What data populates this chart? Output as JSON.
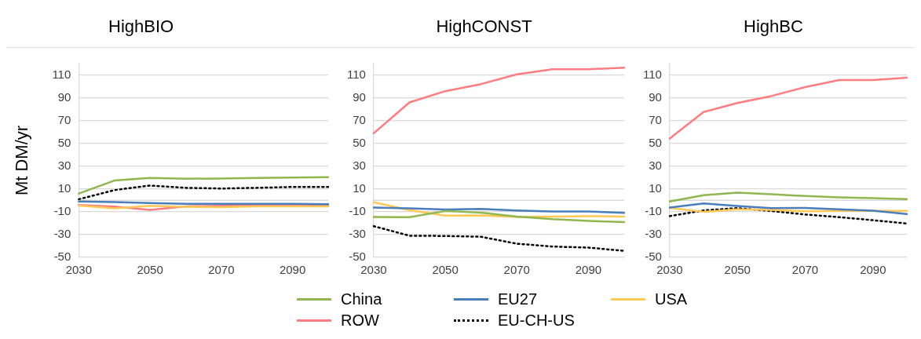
{
  "chart_data": [
    {
      "type": "line",
      "title": "HighBIO",
      "ylabel": "Mt DM/yr",
      "categories": [
        "2030",
        null,
        "2050",
        null,
        "2070",
        null,
        "2090",
        null
      ],
      "ylim": [
        -50,
        120
      ],
      "yticks": [
        -50,
        -30,
        -10,
        10,
        30,
        50,
        70,
        90,
        110
      ],
      "grid": "y",
      "legend": "bottom",
      "marker": "none",
      "ref_lines": [
        {
          "axis": "y",
          "value": 0,
          "color": "#d9d9d9"
        }
      ],
      "series": [
        {
          "name": "China",
          "color": "#8fb64f",
          "values": [
            6,
            17.4,
            19.7,
            19,
            19.2,
            19.7,
            20,
            20.3
          ]
        },
        {
          "name": "EU27",
          "color": "#4a7ebb",
          "values": [
            -1,
            -1.5,
            -2.3,
            -3,
            -3,
            -3,
            -3,
            -3.4
          ]
        },
        {
          "name": "USA",
          "color": "#ffc857",
          "values": [
            -4.5,
            -7,
            -4.7,
            -5.6,
            -6,
            -5.2,
            -5.2,
            -5.2
          ]
        },
        {
          "name": "ROW",
          "color": "#ff7c80",
          "values": [
            -4,
            -5.5,
            -8.4,
            -5.2,
            -4.7,
            -4,
            -4,
            -4
          ]
        },
        {
          "name": "EU-CH-US",
          "color": "#000000",
          "line_style": "dotted",
          "values": [
            1,
            9,
            13,
            11,
            10.4,
            11,
            11.8,
            11.8
          ]
        }
      ]
    },
    {
      "type": "line",
      "title": "HighCONST",
      "categories": [
        "2030",
        null,
        "2050",
        null,
        "2070",
        null,
        "2090",
        null
      ],
      "ylim": [
        -50,
        120
      ],
      "yticks": [
        -50,
        -30,
        -10,
        10,
        30,
        50,
        70,
        90,
        110
      ],
      "grid": "y",
      "marker": "none",
      "ref_lines": [
        {
          "axis": "y",
          "value": 0,
          "color": "#d9d9d9"
        }
      ],
      "series": [
        {
          "color": "#8fb64f",
          "values": [
            -14.5,
            -14.7,
            -9.3,
            -10.8,
            -14.2,
            -16.5,
            -18,
            -19
          ]
        },
        {
          "color": "#4a7ebb",
          "values": [
            -6.3,
            -7,
            -8.1,
            -7.5,
            -8.8,
            -9.7,
            -9.7,
            -11
          ]
        },
        {
          "color": "#ffc857",
          "values": [
            -1.6,
            -8.6,
            -13.3,
            -13.1,
            -14.5,
            -14.2,
            -13.8,
            -14.2
          ]
        },
        {
          "color": "#ff7c80",
          "values": [
            58.8,
            85.9,
            95.8,
            102,
            110.5,
            115,
            115,
            116.4
          ]
        },
        {
          "color": "#000000",
          "line_style": "dotted",
          "values": [
            -22.6,
            -31,
            -31.2,
            -31.9,
            -38,
            -40.5,
            -41.4,
            -44.3
          ]
        }
      ]
    },
    {
      "type": "line",
      "title": "HighBC",
      "categories": [
        "2030",
        null,
        "2050",
        null,
        "2070",
        null,
        "2090",
        null
      ],
      "ylim": [
        -50,
        120
      ],
      "yticks": [
        -50,
        -30,
        -10,
        10,
        30,
        50,
        70,
        90,
        110
      ],
      "grid": "y",
      "marker": "none",
      "ref_lines": [
        {
          "axis": "y",
          "value": 0,
          "color": "#d9d9d9"
        }
      ],
      "series": [
        {
          "color": "#8fb64f",
          "values": [
            -1,
            4.5,
            6.8,
            5.4,
            3.8,
            2.7,
            2,
            1.1
          ]
        },
        {
          "color": "#4a7ebb",
          "values": [
            -6.3,
            -2.7,
            -5,
            -6.8,
            -6.6,
            -7.9,
            -9,
            -12
          ]
        },
        {
          "color": "#ffc857",
          "values": [
            -6.6,
            -10,
            -7.9,
            -8.4,
            -9.5,
            -9,
            -9.3,
            -9.3
          ]
        },
        {
          "color": "#ff7c80",
          "values": [
            54.2,
            77.5,
            85.4,
            91.5,
            99.4,
            105.5,
            105.5,
            107.6
          ]
        },
        {
          "color": "#000000",
          "line_style": "dotted",
          "values": [
            -13.8,
            -8.8,
            -6.8,
            -9.3,
            -12.4,
            -14.7,
            -17.4,
            -20.3
          ]
        }
      ]
    }
  ]
}
